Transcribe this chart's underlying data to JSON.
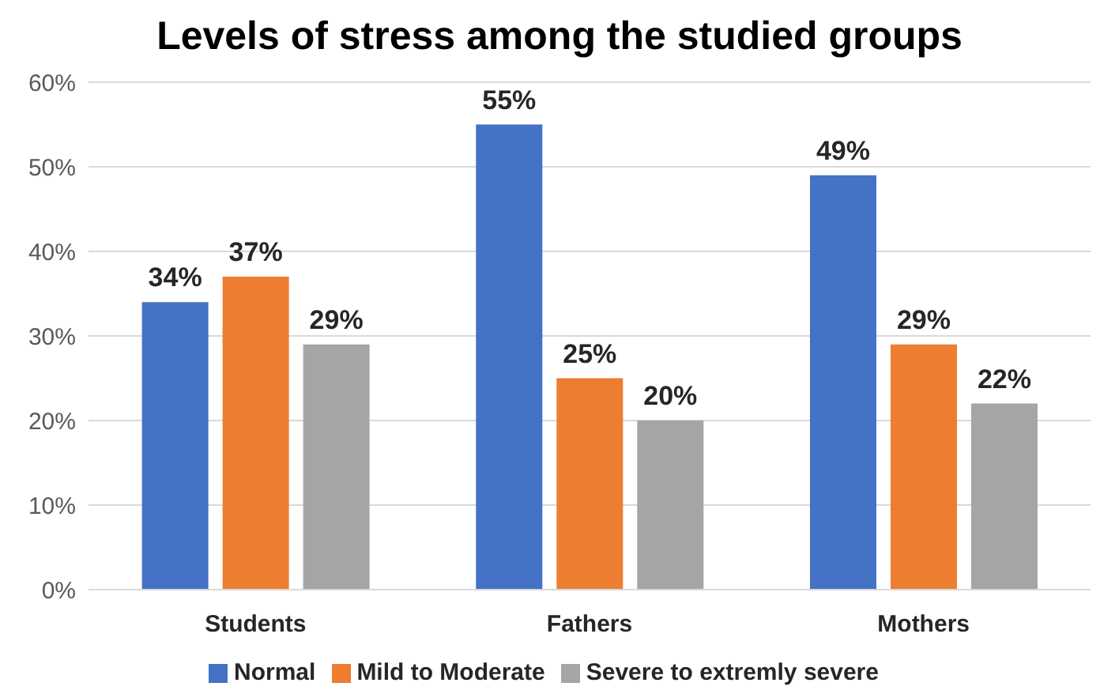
{
  "chart_data": {
    "type": "bar",
    "title": "Levels of stress among the studied groups",
    "categories": [
      "Students",
      "Fathers",
      "Mothers"
    ],
    "series": [
      {
        "name": "Normal",
        "color": "#4472c4",
        "values": [
          34,
          55,
          49
        ],
        "value_labels": [
          "34%",
          "55%",
          "49%"
        ]
      },
      {
        "name": "Mild to Moderate",
        "color": "#ed7d31",
        "values": [
          37,
          25,
          29
        ],
        "value_labels": [
          "37%",
          "25%",
          "29%"
        ]
      },
      {
        "name": "Severe to extremly severe",
        "color": "#a5a5a5",
        "values": [
          29,
          20,
          22
        ],
        "value_labels": [
          "29%",
          "20%",
          "22%"
        ]
      }
    ],
    "ylim": [
      0,
      60
    ],
    "yticks": [
      {
        "value": 0,
        "label": "0%"
      },
      {
        "value": 10,
        "label": "10%"
      },
      {
        "value": 20,
        "label": "20%"
      },
      {
        "value": 30,
        "label": "30%"
      },
      {
        "value": 40,
        "label": "40%"
      },
      {
        "value": 50,
        "label": "50%"
      },
      {
        "value": 60,
        "label": "60%"
      }
    ],
    "grid": "y",
    "legend": "bottom"
  }
}
